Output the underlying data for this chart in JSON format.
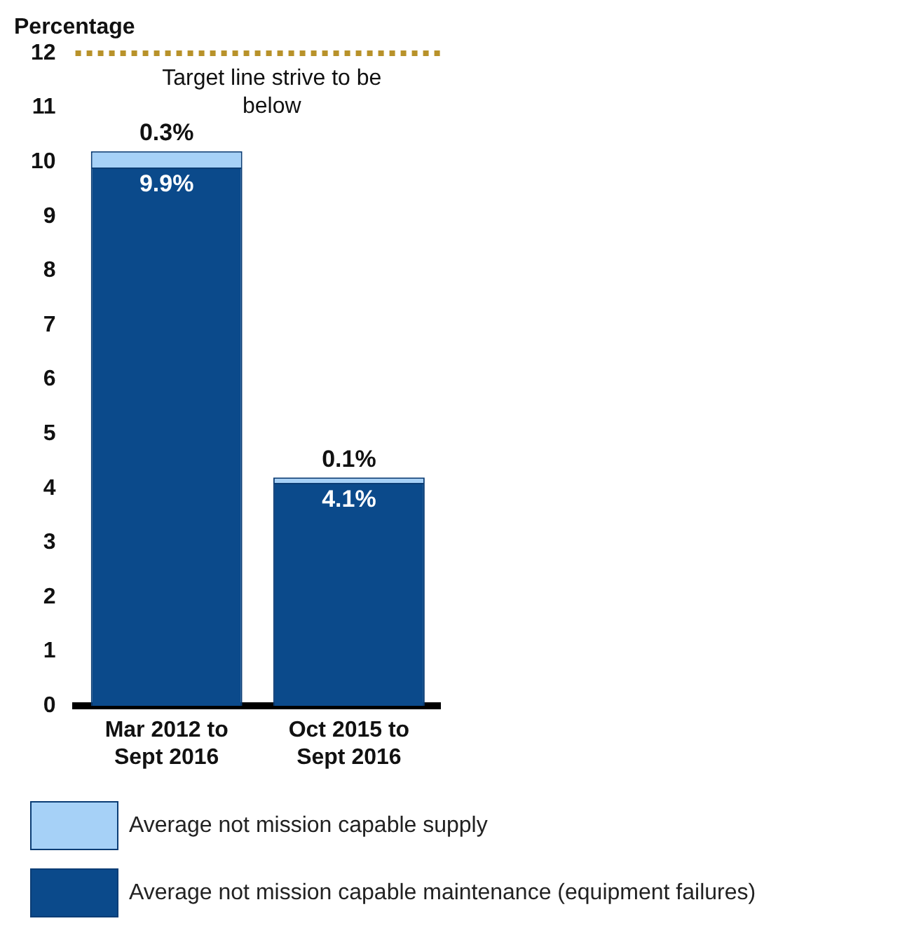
{
  "chart_data": {
    "type": "bar",
    "ylabel": "Percentage",
    "categories": [
      "Mar 2012 to Sept 2016",
      "Oct 2015 to Sept 2016"
    ],
    "stacked": true,
    "series": [
      {
        "name": "Average not mission capable maintenance (equipment failures)",
        "color": "#0b4a8b",
        "values": [
          9.9,
          4.1
        ],
        "value_labels": [
          "9.9%",
          "4.1%"
        ]
      },
      {
        "name": "Average not mission capable supply",
        "color": "#a6d1f7",
        "values": [
          0.3,
          0.1
        ],
        "value_labels": [
          "0.3%",
          "0.1%"
        ]
      }
    ],
    "ylim": [
      0,
      12
    ],
    "yticks": [
      0,
      1,
      2,
      3,
      4,
      5,
      6,
      7,
      8,
      9,
      10,
      11,
      12
    ],
    "grid": false,
    "legend": "bottom",
    "ref_lines": [
      {
        "axis": "y",
        "value": 12,
        "label": "Target line strive to be below",
        "color": "#b8922a",
        "line_style": "dotted"
      }
    ]
  }
}
